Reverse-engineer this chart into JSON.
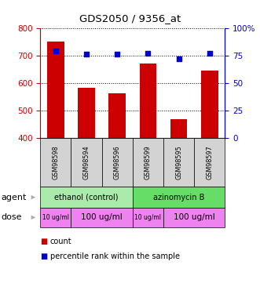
{
  "title": "GDS2050 / 9356_at",
  "samples": [
    "GSM98598",
    "GSM98594",
    "GSM98596",
    "GSM98599",
    "GSM98595",
    "GSM98597"
  ],
  "counts": [
    750,
    583,
    563,
    670,
    470,
    645
  ],
  "percentiles": [
    79,
    76,
    76,
    77,
    72,
    77
  ],
  "ylim_left": [
    400,
    800
  ],
  "ylim_right": [
    0,
    100
  ],
  "yticks_left": [
    400,
    500,
    600,
    700,
    800
  ],
  "yticks_right": [
    0,
    25,
    50,
    75,
    100
  ],
  "bar_color": "#cc0000",
  "dot_color": "#0000cc",
  "bar_bottom": 400,
  "agent_labels": [
    {
      "text": "ethanol (control)",
      "start": 0,
      "end": 3,
      "color": "#aaeaaa"
    },
    {
      "text": "azinomycin B",
      "start": 3,
      "end": 6,
      "color": "#66dd66"
    }
  ],
  "dose_groups": [
    {
      "text": "10 ug/ml",
      "start": 0,
      "end": 1,
      "fontsize": 5.5
    },
    {
      "text": "100 ug/ml",
      "start": 1,
      "end": 3,
      "fontsize": 7.5
    },
    {
      "text": "10 ug/ml",
      "start": 3,
      "end": 4,
      "fontsize": 5.5
    },
    {
      "text": "100 ug/ml",
      "start": 4,
      "end": 6,
      "fontsize": 7.5
    }
  ],
  "dose_color": "#ee82ee",
  "sample_box_color": "#d3d3d3",
  "legend_count_color": "#cc0000",
  "legend_pct_color": "#0000cc",
  "left_axis_color": "#cc0000",
  "right_axis_color": "#0000cc",
  "grid_color": "#000000",
  "background_color": "#ffffff"
}
